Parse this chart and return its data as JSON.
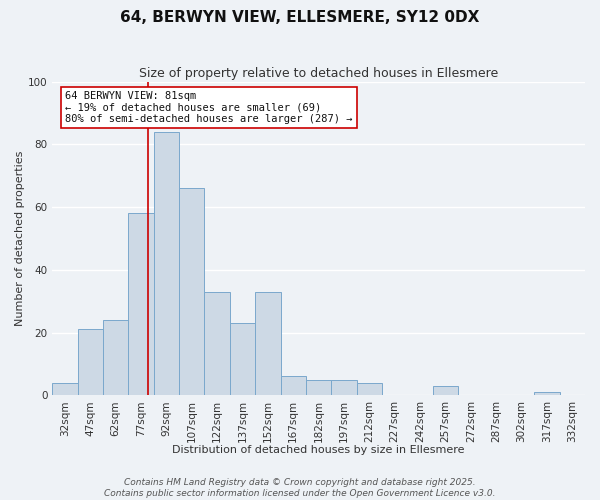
{
  "title": "64, BERWYN VIEW, ELLESMERE, SY12 0DX",
  "subtitle": "Size of property relative to detached houses in Ellesmere",
  "xlabel": "Distribution of detached houses by size in Ellesmere",
  "ylabel": "Number of detached properties",
  "bar_color": "#cdd9e5",
  "bar_edge_color": "#7aa8cc",
  "bin_labels": [
    "32sqm",
    "47sqm",
    "62sqm",
    "77sqm",
    "92sqm",
    "107sqm",
    "122sqm",
    "137sqm",
    "152sqm",
    "167sqm",
    "182sqm",
    "197sqm",
    "212sqm",
    "227sqm",
    "242sqm",
    "257sqm",
    "272sqm",
    "287sqm",
    "302sqm",
    "317sqm",
    "332sqm"
  ],
  "bar_values": [
    4,
    21,
    24,
    58,
    84,
    66,
    33,
    23,
    33,
    6,
    5,
    5,
    4,
    0,
    0,
    3,
    0,
    0,
    0,
    1,
    0
  ],
  "ylim": [
    0,
    100
  ],
  "yticks": [
    0,
    20,
    40,
    60,
    80,
    100
  ],
  "property_line_bin": 3,
  "annotation_title": "64 BERWYN VIEW: 81sqm",
  "annotation_line1": "← 19% of detached houses are smaller (69)",
  "annotation_line2": "80% of semi-detached houses are larger (287) →",
  "footer1": "Contains HM Land Registry data © Crown copyright and database right 2025.",
  "footer2": "Contains public sector information licensed under the Open Government Licence v3.0.",
  "background_color": "#eef2f6",
  "grid_color": "#ffffff",
  "title_fontsize": 11,
  "subtitle_fontsize": 9,
  "axis_label_fontsize": 8,
  "tick_fontsize": 7.5,
  "footer_fontsize": 6.5
}
